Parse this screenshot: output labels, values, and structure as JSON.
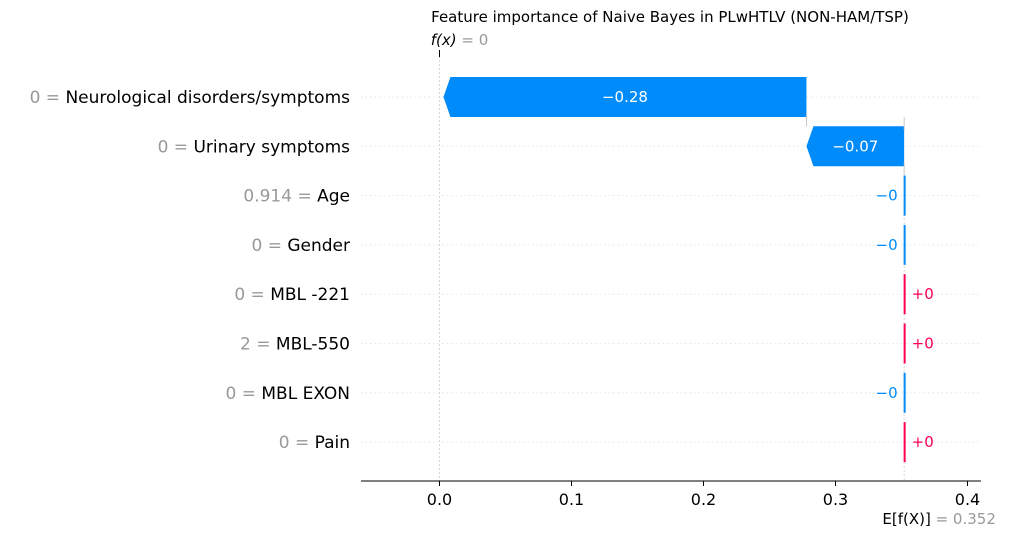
{
  "chart_data": {
    "type": "waterfall",
    "title": "Feature importance of Naive Bayes in PLwHTLV (NON-HAM/TSP)",
    "fx_label": "f(x)",
    "fx_value": "0",
    "base_label": "E[f(X)]",
    "base_value_text": "0.352",
    "base_value": 0.352,
    "final_value": 0.0,
    "xlim": [
      -0.06,
      0.41
    ],
    "xticks": [
      0.0,
      0.1,
      0.2,
      0.3,
      0.4
    ],
    "xtick_labels": [
      "0.0",
      "0.1",
      "0.2",
      "0.3",
      "0.4"
    ],
    "features": [
      {
        "value": "0",
        "name": "Neurological disorders/symptoms",
        "contribution": -0.275,
        "label": "−0.28"
      },
      {
        "value": "0",
        "name": "Urinary symptoms",
        "contribution": -0.074,
        "label": "−0.07"
      },
      {
        "value": "0.914",
        "name": "Age",
        "contribution": -0.0005,
        "label": "−0"
      },
      {
        "value": "0",
        "name": "Gender",
        "contribution": -0.0005,
        "label": "−0"
      },
      {
        "value": "0",
        "name": "MBL -221",
        "contribution": 0.0005,
        "label": "+0"
      },
      {
        "value": "2",
        "name": "MBL-550",
        "contribution": 0.0005,
        "label": "+0"
      },
      {
        "value": "0",
        "name": "MBL EXON",
        "contribution": -0.0005,
        "label": "−0"
      },
      {
        "value": "0",
        "name": "Pain",
        "contribution": 0.0005,
        "label": "+0"
      }
    ],
    "colors": {
      "negative": "#008bfb",
      "positive": "#ff0051",
      "muted": "#999999"
    }
  }
}
